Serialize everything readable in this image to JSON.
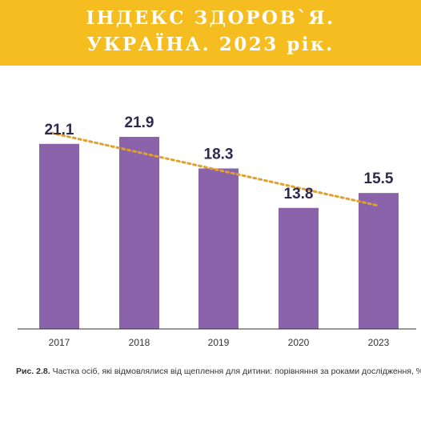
{
  "header": {
    "title_line_1": "ІНДЕКС ЗДОРОВ`Я.",
    "title_line_2": "УКРАЇНА. 2023 рік."
  },
  "caption": {
    "label": "Рис. 2.8.",
    "text": "Частка осіб, які відмовлялися від щеплення для дитини: порівняння за роками дослідження, %"
  },
  "colors": {
    "banner": "#f5bd1f",
    "bar": "#8a63aa",
    "trend": "#e0a12e",
    "value_label": "#2c2a4d",
    "axis": "#333333"
  },
  "chart_data": {
    "type": "bar",
    "categories": [
      "2017",
      "2018",
      "2019",
      "2020",
      "2023"
    ],
    "values": [
      21.1,
      21.9,
      18.3,
      13.8,
      15.5
    ],
    "value_labels": [
      "21.1",
      "21.9",
      "18.3",
      "13.8",
      "15.5"
    ],
    "ylim": [
      0,
      22
    ],
    "trendline": {
      "style": "dotted",
      "from": 21.1,
      "to": 13.7
    },
    "grid": false,
    "legend": "none",
    "xlabel": "",
    "ylabel": ""
  }
}
